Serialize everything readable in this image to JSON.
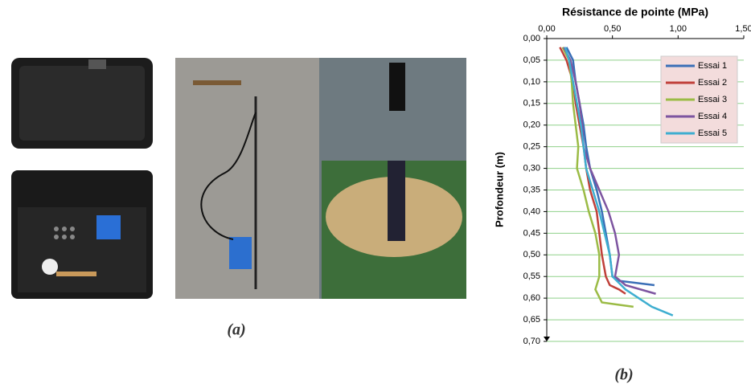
{
  "captions": [
    "(a)",
    "(b)"
  ],
  "chart_data": {
    "type": "line",
    "title": "Résistance de pointe (MPa)",
    "y_label": "Profondeur (m)",
    "xlim": [
      0,
      1.5
    ],
    "xticks": [
      {
        "value": 0,
        "label": "0,00"
      },
      {
        "value": 0.5,
        "label": "0,50"
      },
      {
        "value": 1,
        "label": "1,00"
      },
      {
        "value": 1.5,
        "label": "1,50"
      }
    ],
    "ylim": [
      0,
      0.7
    ],
    "y_inverted": true,
    "yticks": [
      {
        "value": 0,
        "label": "0,00"
      },
      {
        "value": 0.05,
        "label": "0,05"
      },
      {
        "value": 0.1,
        "label": "0,10"
      },
      {
        "value": 0.15,
        "label": "0,15"
      },
      {
        "value": 0.2,
        "label": "0,20"
      },
      {
        "value": 0.25,
        "label": "0,25"
      },
      {
        "value": 0.3,
        "label": "0,30"
      },
      {
        "value": 0.35,
        "label": "0,35"
      },
      {
        "value": 0.4,
        "label": "0,40"
      },
      {
        "value": 0.45,
        "label": "0,45"
      },
      {
        "value": 0.5,
        "label": "0,50"
      },
      {
        "value": 0.55,
        "label": "0,55"
      },
      {
        "value": 0.6,
        "label": "0,60"
      },
      {
        "value": 0.65,
        "label": "0,65"
      },
      {
        "value": 0.7,
        "label": "0,70"
      }
    ],
    "grid": true,
    "grid_color": "#8fd18a",
    "legend": "upper right",
    "series": [
      {
        "name": "Essai 1",
        "color": "#3a6fb7",
        "x": [
          0.15,
          0.2,
          0.22,
          0.25,
          0.28,
          0.3,
          0.33,
          0.38,
          0.42,
          0.45,
          0.48,
          0.5,
          0.55,
          0.82
        ],
        "y": [
          0.02,
          0.05,
          0.1,
          0.15,
          0.2,
          0.25,
          0.3,
          0.35,
          0.4,
          0.45,
          0.5,
          0.55,
          0.56,
          0.57
        ]
      },
      {
        "name": "Essai 2",
        "color": "#c0403a",
        "x": [
          0.1,
          0.15,
          0.2,
          0.22,
          0.25,
          0.28,
          0.3,
          0.33,
          0.38,
          0.4,
          0.42,
          0.45,
          0.48,
          0.55,
          0.6
        ],
        "y": [
          0.02,
          0.05,
          0.1,
          0.15,
          0.2,
          0.25,
          0.3,
          0.35,
          0.4,
          0.45,
          0.5,
          0.55,
          0.57,
          0.58,
          0.59
        ]
      },
      {
        "name": "Essai 3",
        "color": "#9bbb45",
        "x": [
          0.12,
          0.17,
          0.19,
          0.2,
          0.22,
          0.24,
          0.23,
          0.28,
          0.32,
          0.37,
          0.4,
          0.4,
          0.37,
          0.42,
          0.66
        ],
        "y": [
          0.02,
          0.05,
          0.1,
          0.15,
          0.2,
          0.25,
          0.3,
          0.35,
          0.4,
          0.45,
          0.5,
          0.55,
          0.58,
          0.61,
          0.62
        ]
      },
      {
        "name": "Essai 4",
        "color": "#7d55a0",
        "x": [
          0.13,
          0.18,
          0.22,
          0.25,
          0.27,
          0.28,
          0.33,
          0.4,
          0.47,
          0.52,
          0.55,
          0.52,
          0.6,
          0.83
        ],
        "y": [
          0.02,
          0.05,
          0.1,
          0.15,
          0.2,
          0.25,
          0.3,
          0.35,
          0.4,
          0.45,
          0.5,
          0.55,
          0.57,
          0.59
        ]
      },
      {
        "name": "Essai 5",
        "color": "#3eaed0",
        "x": [
          0.14,
          0.17,
          0.2,
          0.23,
          0.26,
          0.28,
          0.3,
          0.35,
          0.4,
          0.44,
          0.48,
          0.5,
          0.6,
          0.8,
          0.96
        ],
        "y": [
          0.02,
          0.05,
          0.1,
          0.15,
          0.2,
          0.25,
          0.3,
          0.35,
          0.4,
          0.45,
          0.5,
          0.55,
          0.58,
          0.62,
          0.64
        ]
      }
    ]
  }
}
